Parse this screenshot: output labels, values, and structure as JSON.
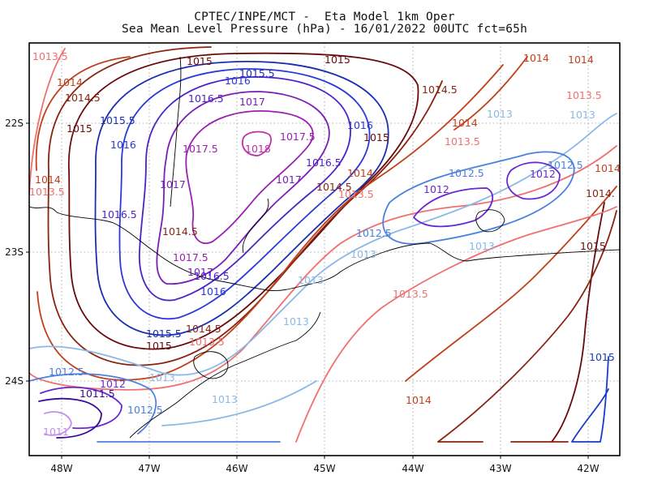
{
  "header": {
    "line1": "CPTEC/INPE/MCT -  Eta Model 1km Oper",
    "line2": "Sea Mean Level Pressure (hPa) - 16/01/2022 00UTC fct=65h"
  },
  "map": {
    "lon_labels": [
      "48W",
      "47W",
      "46W",
      "45W",
      "44W",
      "43W",
      "42W"
    ],
    "lat_labels": [
      "22S",
      "23S",
      "24S"
    ],
    "variable": "Sea Mean Level Pressure",
    "units": "hPa",
    "grid": "dotted lat/lon lines every 1 degree"
  },
  "contour_labels": [
    {
      "text": "1013.5",
      "color": "#f07070"
    },
    {
      "text": "1014",
      "color": "#c0401c"
    },
    {
      "text": "1014.5",
      "color": "#8a2410"
    },
    {
      "text": "1015",
      "color": "#6b0a0a"
    },
    {
      "text": "1015",
      "color": "#6b0a0a"
    },
    {
      "text": "1014",
      "color": "#c0401c"
    },
    {
      "text": "1014",
      "color": "#c0401c"
    },
    {
      "text": "1015.5",
      "color": "#1a2fb0"
    },
    {
      "text": "1016",
      "color": "#2a3ad8"
    },
    {
      "text": "1016.5",
      "color": "#4b22c9"
    },
    {
      "text": "1017",
      "color": "#7a1eb8"
    },
    {
      "text": "1015.5",
      "color": "#1a2fb0"
    },
    {
      "text": "1015",
      "color": "#6b0a0a"
    },
    {
      "text": "1016",
      "color": "#2a3ad8"
    },
    {
      "text": "1014.5",
      "color": "#8a2410"
    },
    {
      "text": "1013.5",
      "color": "#f07070"
    },
    {
      "text": "1017.5",
      "color": "#9b1fb0"
    },
    {
      "text": "1018",
      "color": "#c030a8"
    },
    {
      "text": "1017.5",
      "color": "#9b1fb0"
    },
    {
      "text": "1016",
      "color": "#2a3ad8"
    },
    {
      "text": "1015",
      "color": "#6b0a0a"
    },
    {
      "text": "1014",
      "color": "#c0401c"
    },
    {
      "text": "1013",
      "color": "#8ab8e8"
    },
    {
      "text": "1013",
      "color": "#8ab8e8"
    },
    {
      "text": "1012.5",
      "color": "#4a80e0"
    },
    {
      "text": "1012",
      "color": "#6a28d0"
    },
    {
      "text": "1012",
      "color": "#6a28d0"
    },
    {
      "text": "1012.5",
      "color": "#4a80e0"
    },
    {
      "text": "1014",
      "color": "#c0401c"
    },
    {
      "text": "1014",
      "color": "#c0401c"
    },
    {
      "text": "1013.5",
      "color": "#f07070"
    },
    {
      "text": "1014.5",
      "color": "#8a2410"
    },
    {
      "text": "1014",
      "color": "#c0401c"
    },
    {
      "text": "1014.",
      "color": "#8a2410"
    },
    {
      "text": "1015",
      "color": "#6b0a0a"
    },
    {
      "text": "1013.5",
      "color": "#f07070"
    },
    {
      "text": "1016.5",
      "color": "#4b22c9"
    },
    {
      "text": "1017",
      "color": "#7a1eb8"
    },
    {
      "text": "1014.5",
      "color": "#8a2410"
    },
    {
      "text": "1013.5",
      "color": "#f07070"
    },
    {
      "text": "1017",
      "color": "#7a1eb8"
    },
    {
      "text": "1016.5",
      "color": "#4b22c9"
    },
    {
      "text": "1017.5",
      "color": "#9b1fb0"
    },
    {
      "text": "1017",
      "color": "#7a1eb8"
    },
    {
      "text": "1016.5",
      "color": "#4b22c9"
    },
    {
      "text": "1016",
      "color": "#2a3ad8"
    },
    {
      "text": "1012.5",
      "color": "#4a80e0"
    },
    {
      "text": "1013",
      "color": "#8ab8e8"
    },
    {
      "text": "1013",
      "color": "#8ab8e8"
    },
    {
      "text": "1013",
      "color": "#8ab8e8"
    },
    {
      "text": "1013",
      "color": "#8ab8e8"
    },
    {
      "text": "1013.5",
      "color": "#f07070"
    },
    {
      "text": "1015.5",
      "color": "#1a2fb0"
    },
    {
      "text": "1014.5",
      "color": "#8a2410"
    },
    {
      "text": "1015",
      "color": "#6b0a0a"
    },
    {
      "text": "1013.5",
      "color": "#f07070"
    },
    {
      "text": "1012.5",
      "color": "#4a80e0"
    },
    {
      "text": "1012",
      "color": "#6a28d0"
    },
    {
      "text": "1011.5",
      "color": "#3a0a9a"
    },
    {
      "text": "1012.5",
      "color": "#4a80e0"
    },
    {
      "text": "1013",
      "color": "#8ab8e8"
    },
    {
      "text": "1011",
      "color": "#c090f0"
    },
    {
      "text": "1013",
      "color": "#8ab8e8"
    },
    {
      "text": "1014",
      "color": "#c0401c"
    },
    {
      "text": "1015",
      "color": "#1a3ac8"
    }
  ],
  "colors": {
    "frame": "#000000",
    "coastline": "#000000",
    "grid": "#999999"
  }
}
